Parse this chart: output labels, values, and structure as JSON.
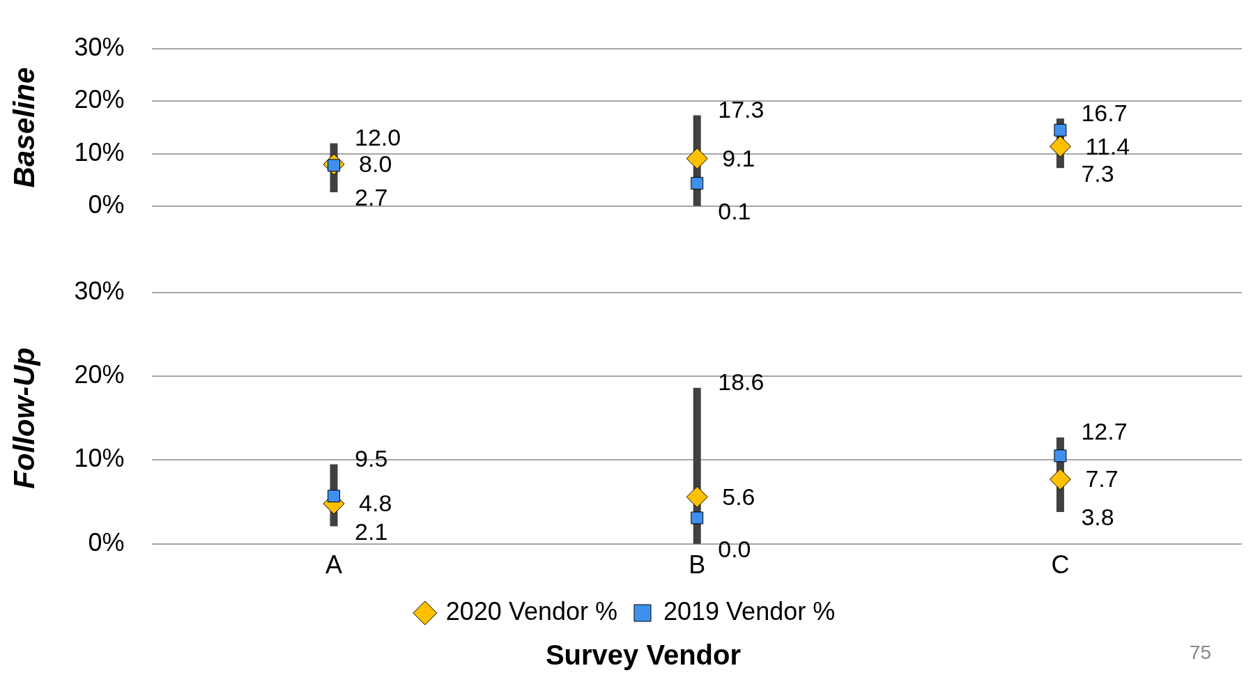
{
  "chart_data": [
    {
      "type": "scatter",
      "ylabel": "Baseline",
      "categories": [
        "A",
        "B",
        "C"
      ],
      "ylim": [
        0,
        30
      ],
      "yticks": [
        {
          "value": 0,
          "label": "0%"
        },
        {
          "value": 10,
          "label": "10%"
        },
        {
          "value": 20,
          "label": "20%"
        },
        {
          "value": 30,
          "label": "30%"
        }
      ],
      "grid": "y",
      "legend": false,
      "tick_labels": "y",
      "series": [
        {
          "color": "#ffc000",
          "marker": "diamond",
          "values": [
            8.0,
            9.1,
            11.4
          ],
          "errors": [
            [
              2.7,
              12.0
            ],
            [
              0.1,
              17.3
            ],
            [
              7.3,
              16.7
            ]
          ],
          "value_labels": [
            "8.0",
            "9.1",
            "11.4"
          ]
        },
        {
          "color": "#3f8fef",
          "marker": "square",
          "values": [
            7.8,
            4.4,
            14.5
          ]
        }
      ],
      "annotations": [
        {
          "text": "12.0",
          "x": "A",
          "y": 12.0
        },
        {
          "text": "2.7",
          "x": "A",
          "y": 2.7
        },
        {
          "text": "17.3",
          "x": "B",
          "y": 17.3
        },
        {
          "text": "0.1",
          "x": "B",
          "y": 0.1
        },
        {
          "text": "16.7",
          "x": "C",
          "y": 16.7
        },
        {
          "text": "7.3",
          "x": "C",
          "y": 7.3
        }
      ]
    },
    {
      "type": "scatter",
      "ylabel": "Follow-Up",
      "xlabel": "Survey Vendor",
      "categories": [
        "A",
        "B",
        "C"
      ],
      "ylim": [
        0,
        30
      ],
      "yticks": [
        {
          "value": 0,
          "label": "0%"
        },
        {
          "value": 10,
          "label": "10%"
        },
        {
          "value": 20,
          "label": "20%"
        },
        {
          "value": 30,
          "label": "30%"
        }
      ],
      "grid": "y",
      "legend": "bottom",
      "series": [
        {
          "name": "2020 Vendor %",
          "color": "#ffc000",
          "marker": "diamond",
          "values": [
            4.8,
            5.6,
            7.7
          ],
          "errors": [
            [
              2.1,
              9.5
            ],
            [
              0.0,
              18.6
            ],
            [
              3.8,
              12.7
            ]
          ],
          "value_labels": [
            "4.8",
            "5.6",
            "7.7"
          ]
        },
        {
          "name": "2019 Vendor %",
          "color": "#3f8fef",
          "marker": "square",
          "values": [
            5.7,
            3.1,
            10.5
          ]
        }
      ],
      "annotations": [
        {
          "text": "9.5",
          "x": "A",
          "y": 9.5
        },
        {
          "text": "2.1",
          "x": "A",
          "y": 2.1
        },
        {
          "text": "18.6",
          "x": "B",
          "y": 18.6
        },
        {
          "text": "0.0",
          "x": "B",
          "y": 0.0
        },
        {
          "text": "12.7",
          "x": "C",
          "y": 12.7
        },
        {
          "text": "3.8",
          "x": "C",
          "y": 3.8
        },
        "75"
      ]
    }
  ]
}
